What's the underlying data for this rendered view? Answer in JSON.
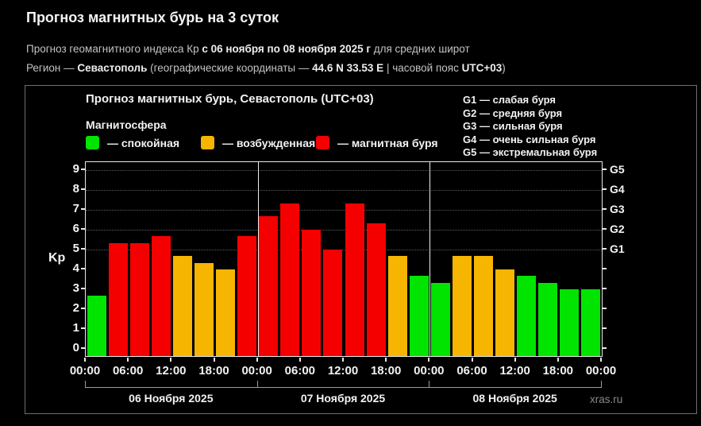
{
  "header": {
    "title": "Прогноз магнитных бурь на 3 суток",
    "subtitle": {
      "prefix": "Прогноз геомагнитного индекса Кр ",
      "bold": "с 06 ноября по 08 ноября 2025 г",
      "suffix": " для средних широт"
    },
    "region": {
      "prefix": "Регион — ",
      "city": "Севастополь",
      "mid": " (географические координаты — ",
      "coords": "44.6 N 33.53 E",
      "tz_label": " | часовой пояс ",
      "tz": "UTC+03",
      "close": ")"
    }
  },
  "panel": {
    "chart_title": "Прогноз магнитных бурь, Севастополь (UTC+03)",
    "legend_title": "Магнитосфера",
    "legend": [
      {
        "label": "— спокойная",
        "level": "quiet",
        "color": "#00e400"
      },
      {
        "label": "— возбужденная",
        "level": "excited",
        "color": "#f6b500"
      },
      {
        "label": "— магнитная буря",
        "level": "storm",
        "color": "#f40000"
      }
    ],
    "g_legend": [
      "G1 — слабая буря",
      "G2 — средняя буря",
      "G3 — сильная буря",
      "G4 — очень сильная буря",
      "G5 — экстремальная буря"
    ],
    "watermark": "xras.ru"
  },
  "chart_data": {
    "type": "bar",
    "title": "Прогноз магнитных бурь, Севастополь (UTC+03)",
    "ylabel": "Kp",
    "ylim": [
      0,
      9
    ],
    "left_ticks": [
      0,
      1,
      2,
      3,
      4,
      5,
      6,
      7,
      8,
      9
    ],
    "gridlines_at": [
      5,
      6,
      7,
      8,
      9
    ],
    "grid": "dotted horizontal at storm levels only",
    "legend_position": "top",
    "right_labels": [
      {
        "text": "G1",
        "kp": 5
      },
      {
        "text": "G2",
        "kp": 6
      },
      {
        "text": "G3",
        "kp": 7
      },
      {
        "text": "G4",
        "kp": 8
      },
      {
        "text": "G5",
        "kp": 9
      }
    ],
    "time_labels": [
      "00:00",
      "06:00",
      "12:00",
      "18:00",
      "00:00",
      "06:00",
      "12:00",
      "18:00",
      "00:00",
      "06:00",
      "12:00",
      "18:00",
      "00:00"
    ],
    "level_colors": {
      "quiet": "#00e400",
      "excited": "#f6b500",
      "storm": "#f40000"
    },
    "days": [
      {
        "date": "06 Ноября 2025",
        "bars": [
          {
            "kp": 2.67,
            "level": "quiet"
          },
          {
            "kp": 5.33,
            "level": "storm"
          },
          {
            "kp": 5.33,
            "level": "storm"
          },
          {
            "kp": 5.67,
            "level": "storm"
          },
          {
            "kp": 4.67,
            "level": "excited"
          },
          {
            "kp": 4.33,
            "level": "excited"
          },
          {
            "kp": 4.0,
            "level": "excited"
          },
          {
            "kp": 5.67,
            "level": "storm"
          }
        ]
      },
      {
        "date": "07 Ноября 2025",
        "bars": [
          {
            "kp": 6.67,
            "level": "storm"
          },
          {
            "kp": 7.33,
            "level": "storm"
          },
          {
            "kp": 6.0,
            "level": "storm"
          },
          {
            "kp": 5.0,
            "level": "storm"
          },
          {
            "kp": 7.33,
            "level": "storm"
          },
          {
            "kp": 6.33,
            "level": "storm"
          },
          {
            "kp": 4.67,
            "level": "excited"
          },
          {
            "kp": 3.67,
            "level": "quiet"
          }
        ]
      },
      {
        "date": "08 Ноября 2025",
        "bars": [
          {
            "kp": 3.33,
            "level": "quiet"
          },
          {
            "kp": 4.67,
            "level": "excited"
          },
          {
            "kp": 4.67,
            "level": "excited"
          },
          {
            "kp": 4.0,
            "level": "excited"
          },
          {
            "kp": 3.67,
            "level": "quiet"
          },
          {
            "kp": 3.33,
            "level": "quiet"
          },
          {
            "kp": 3.0,
            "level": "quiet"
          },
          {
            "kp": 3.0,
            "level": "quiet"
          }
        ]
      }
    ]
  }
}
